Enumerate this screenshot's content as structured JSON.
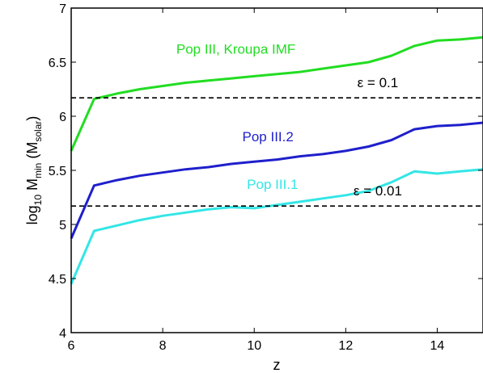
{
  "chart_data": {
    "type": "line",
    "title": "",
    "xlabel": "z",
    "ylabel": {
      "base": "log",
      "base_sub": "10",
      "var": " M",
      "var_sub": "min",
      "unit_open": " (M",
      "unit_sub": "solar",
      "unit_close": ")"
    },
    "xlim": [
      6,
      15
    ],
    "ylim": [
      4,
      7
    ],
    "xticks": [
      6,
      8,
      10,
      12,
      14
    ],
    "xtick_labels": [
      "6",
      "8",
      "10",
      "12",
      "14"
    ],
    "yticks": [
      4,
      4.5,
      5,
      5.5,
      6,
      6.5,
      7
    ],
    "ytick_labels": [
      "4",
      "4.5",
      "5",
      "5.5",
      "6",
      "6.5",
      "7"
    ],
    "grid": false,
    "series": [
      {
        "name": "Pop III, Kroupa IMF",
        "color": "#22dd22",
        "x": [
          6,
          6.5,
          7,
          7.5,
          8,
          8.5,
          9,
          9.5,
          10,
          10.5,
          11,
          11.5,
          12,
          12.5,
          13,
          13.5,
          14,
          14.5,
          15
        ],
        "y": [
          5.68,
          6.16,
          6.21,
          6.25,
          6.28,
          6.31,
          6.33,
          6.35,
          6.37,
          6.39,
          6.41,
          6.44,
          6.47,
          6.5,
          6.56,
          6.65,
          6.7,
          6.71,
          6.73
        ]
      },
      {
        "name": "Pop III.2",
        "color": "#1f1fcc",
        "x": [
          6,
          6.5,
          7,
          7.5,
          8,
          8.5,
          9,
          9.5,
          10,
          10.5,
          11,
          11.5,
          12,
          12.5,
          13,
          13.5,
          14,
          14.5,
          15
        ],
        "y": [
          4.87,
          5.36,
          5.41,
          5.45,
          5.48,
          5.51,
          5.53,
          5.56,
          5.58,
          5.6,
          5.63,
          5.65,
          5.68,
          5.72,
          5.78,
          5.88,
          5.91,
          5.92,
          5.94
        ]
      },
      {
        "name": "Pop III.1",
        "color": "#33e6e6",
        "x": [
          6,
          6.5,
          7,
          7.5,
          8,
          8.5,
          9,
          9.5,
          10,
          10.5,
          11,
          11.5,
          12,
          12.5,
          13,
          13.5,
          14,
          14.5,
          15
        ],
        "y": [
          4.45,
          4.94,
          4.99,
          5.04,
          5.08,
          5.11,
          5.14,
          5.16,
          5.15,
          5.18,
          5.21,
          5.24,
          5.27,
          5.31,
          5.39,
          5.49,
          5.47,
          5.49,
          5.51
        ]
      }
    ],
    "reference_lines": [
      {
        "label": "ε = 0.1",
        "y": 6.17,
        "style": "dashed",
        "color": "#000000"
      },
      {
        "label": "ε = 0.01",
        "y": 5.17,
        "style": "dashed",
        "color": "#000000"
      }
    ],
    "annotations": [
      {
        "text": "Pop III, Kroupa IMF",
        "x": 9.6,
        "y": 6.58,
        "color": "#22dd22"
      },
      {
        "text": "Pop III.2",
        "x": 10.3,
        "y": 5.77,
        "color": "#1f1fcc"
      },
      {
        "text": "Pop III.1",
        "x": 10.4,
        "y": 5.33,
        "color": "#33e6e6"
      },
      {
        "text": "ε = 0.1",
        "x": 12.7,
        "y": 6.27,
        "color": "#000000"
      },
      {
        "text": "ε = 0.01",
        "x": 12.7,
        "y": 5.27,
        "color": "#000000"
      }
    ]
  }
}
